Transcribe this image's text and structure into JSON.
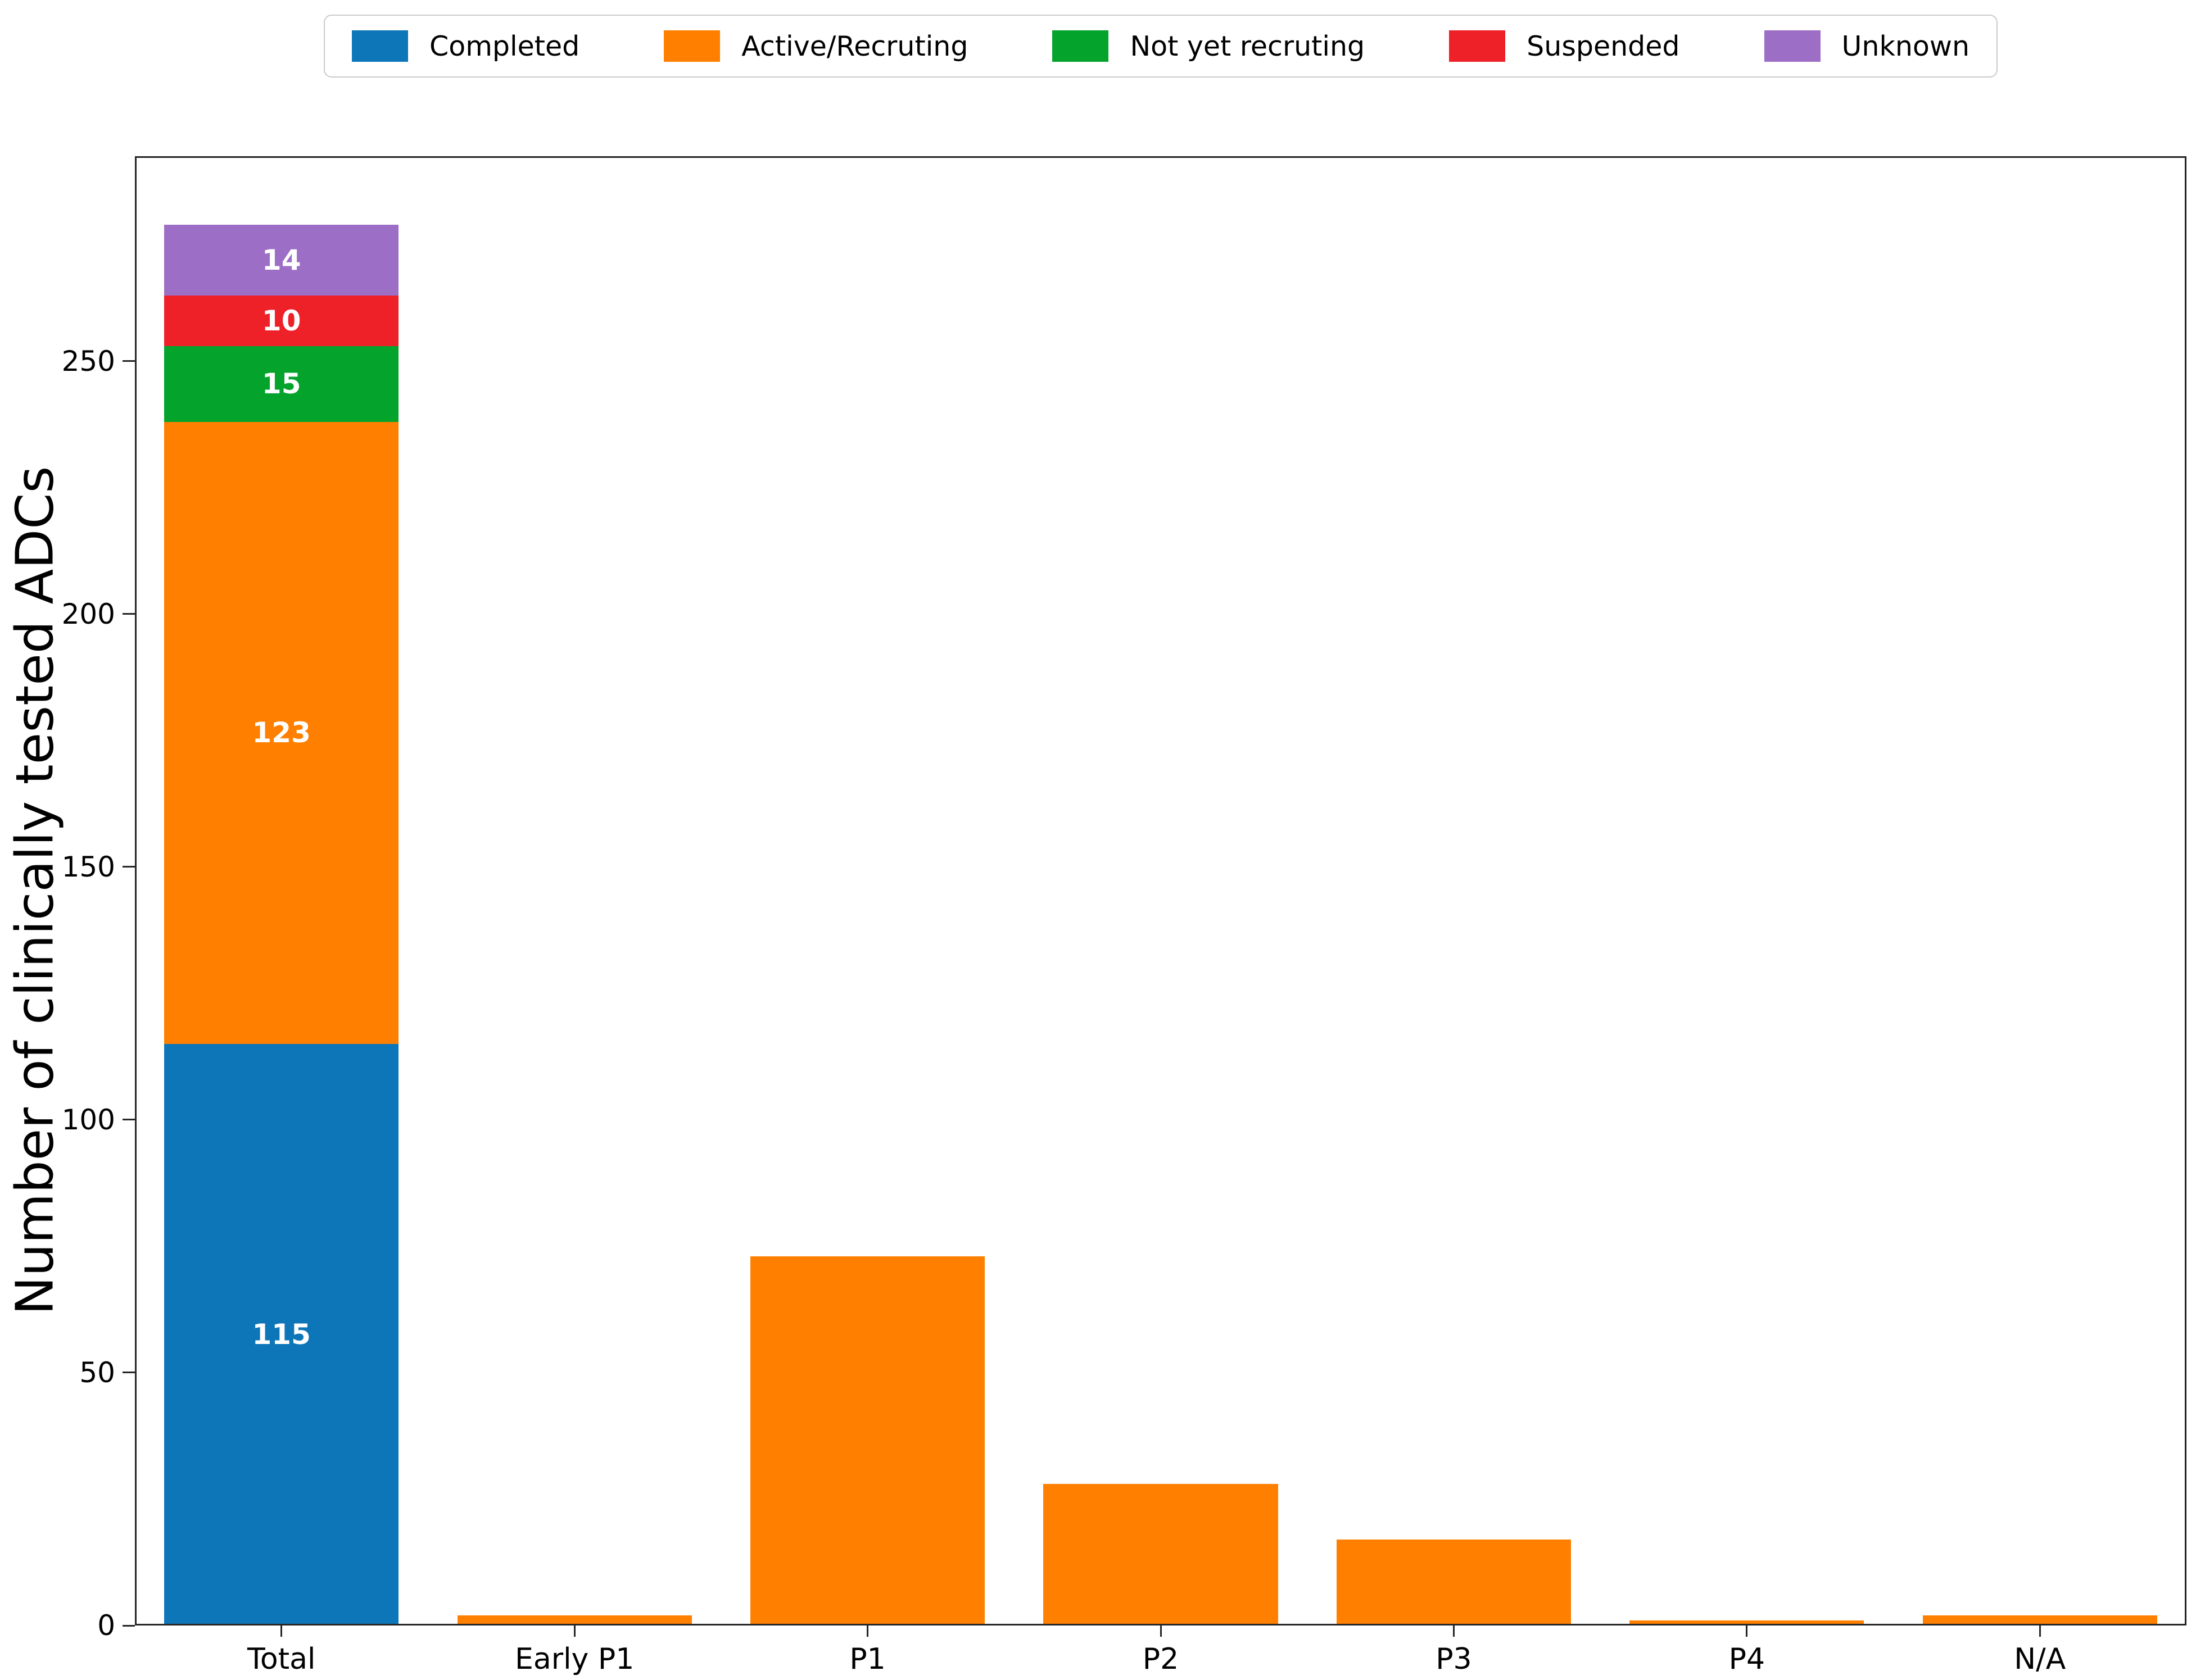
{
  "figure": {
    "background": "#ffffff",
    "axis_color": "#262626"
  },
  "chart_data": {
    "type": "bar",
    "stacked": true,
    "title": "",
    "xlabel": "",
    "ylabel": "Number of clinically tested ADCs",
    "ylim": [
      0,
      290.5
    ],
    "yticks": [
      0,
      50,
      100,
      150,
      200,
      250
    ],
    "grid": false,
    "legend_position": "top-center",
    "categories": [
      "Total",
      "Early P1",
      "P1",
      "P2",
      "P3",
      "P4",
      "N/A"
    ],
    "series": [
      {
        "name": "Completed",
        "color": "#0d76b8",
        "values": [
          115,
          0,
          0,
          0,
          0,
          0,
          0
        ]
      },
      {
        "name": "Active/Recruting",
        "color": "#ff8000",
        "values": [
          123,
          2,
          73,
          28,
          17,
          1,
          2
        ]
      },
      {
        "name": "Not yet recruting",
        "color": "#04a32c",
        "values": [
          15,
          0,
          0,
          0,
          0,
          0,
          0
        ]
      },
      {
        "name": "Suspended",
        "color": "#ee2129",
        "values": [
          10,
          0,
          0,
          0,
          0,
          0,
          0
        ]
      },
      {
        "name": "Unknown",
        "color": "#9d6ec6",
        "values": [
          14,
          0,
          0,
          0,
          0,
          0,
          0
        ]
      }
    ],
    "segment_labels_shown_for": [
      "Total"
    ],
    "segment_label_values_total": [
      115,
      123,
      15,
      10,
      14
    ]
  }
}
